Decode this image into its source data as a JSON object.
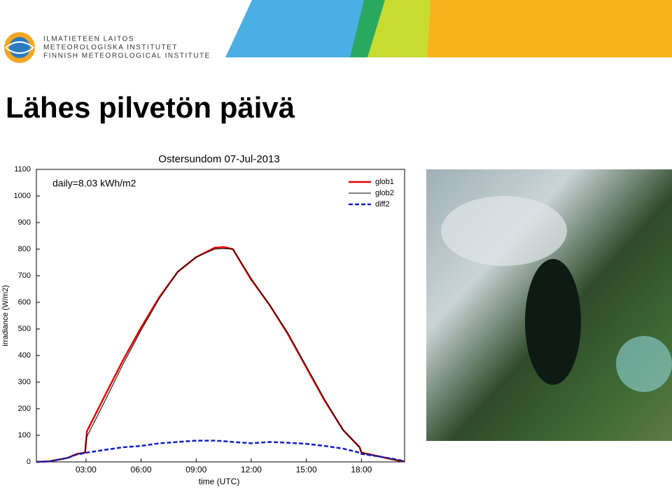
{
  "header": {
    "logo_lines": [
      "ILMATIETEEN LAITOS",
      "METEOROLOGISKA INSTITUTET",
      "FINNISH METEOROLOGICAL INSTITUTE"
    ],
    "title": "Lähes pilvetön päivä"
  },
  "chart_data": {
    "type": "line",
    "title": "Ostersundom 07-Jul-2013",
    "annotation": "daily=8.03 kWh/m2",
    "xlabel": "time (UTC)",
    "ylabel": "irradiance (W/m2)",
    "x": [
      0.3,
      1,
      2,
      2.5,
      2.95,
      3.05,
      4,
      5,
      6,
      7,
      8,
      9,
      10,
      10.5,
      11,
      12,
      13,
      14,
      15,
      16,
      17,
      17.9,
      18.0,
      19,
      20,
      20.35
    ],
    "series": [
      {
        "name": "glob1",
        "color": "#e00000",
        "width": 2.5,
        "style": "solid",
        "values": [
          0,
          2,
          15,
          30,
          35,
          115,
          245,
          380,
          505,
          620,
          715,
          770,
          805,
          808,
          800,
          685,
          590,
          480,
          355,
          230,
          120,
          55,
          35,
          20,
          5,
          2
        ]
      },
      {
        "name": "glob2",
        "color": "#000000",
        "width": 1,
        "style": "solid",
        "values": [
          0,
          2,
          15,
          30,
          35,
          95,
          225,
          365,
          495,
          615,
          715,
          770,
          800,
          802,
          800,
          690,
          590,
          485,
          360,
          235,
          120,
          55,
          35,
          20,
          5,
          2
        ]
      },
      {
        "name": "diff2",
        "color": "#1020c0",
        "width": 2.5,
        "style": "dashed",
        "values": [
          0,
          2,
          15,
          28,
          33,
          35,
          45,
          55,
          60,
          70,
          75,
          80,
          80,
          78,
          75,
          70,
          75,
          72,
          68,
          60,
          50,
          35,
          30,
          20,
          8,
          2
        ]
      }
    ],
    "xlim": [
      0.3,
      20.35
    ],
    "ylim": [
      0,
      1100
    ],
    "xticks": [
      {
        "value": 3,
        "label": "03:00"
      },
      {
        "value": 6,
        "label": "06:00"
      },
      {
        "value": 9,
        "label": "09:00"
      },
      {
        "value": 12,
        "label": "12:00"
      },
      {
        "value": 15,
        "label": "15:00"
      },
      {
        "value": 18,
        "label": "18:00"
      }
    ],
    "yticks": [
      0,
      100,
      200,
      300,
      400,
      500,
      600,
      700,
      800,
      900,
      1000,
      1100
    ],
    "grid": false,
    "legend": "top-right"
  }
}
